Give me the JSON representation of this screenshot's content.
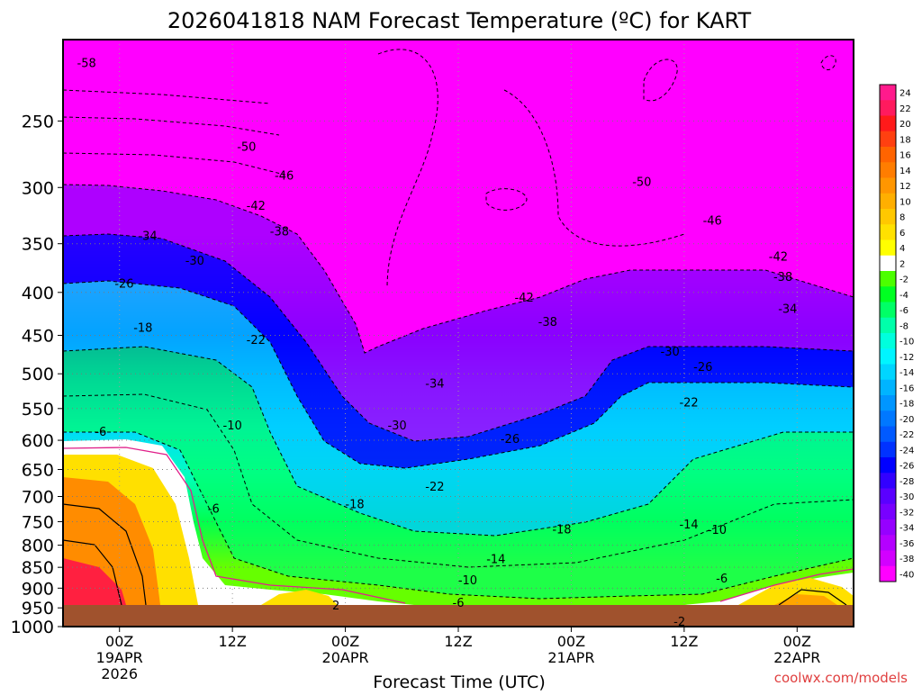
{
  "chart_data": {
    "type": "heatmap",
    "title": "2026041818 NAM Forecast Temperature (ºC) for KART",
    "xlabel": "Forecast Time (UTC)",
    "ylabel": "",
    "credit": "coolwx.com/models",
    "y_axis": {
      "scale": "log",
      "range": [
        200,
        1000
      ],
      "inverted": true,
      "ticks": [
        250,
        300,
        350,
        400,
        450,
        500,
        550,
        600,
        650,
        700,
        750,
        800,
        850,
        900,
        950,
        1000
      ]
    },
    "x_axis": {
      "range_hours": [
        -6,
        78
      ],
      "ticks": [
        {
          "hour": 0,
          "line1": "00Z",
          "line2": "19APR",
          "line3": "2026"
        },
        {
          "hour": 12,
          "line1": "12Z",
          "line2": "",
          "line3": ""
        },
        {
          "hour": 24,
          "line1": "00Z",
          "line2": "20APR",
          "line3": ""
        },
        {
          "hour": 36,
          "line1": "12Z",
          "line2": "",
          "line3": ""
        },
        {
          "hour": 48,
          "line1": "00Z",
          "line2": "21APR",
          "line3": ""
        },
        {
          "hour": 60,
          "line1": "12Z",
          "line2": "",
          "line3": ""
        },
        {
          "hour": 72,
          "line1": "00Z",
          "line2": "22APR",
          "line3": ""
        }
      ]
    },
    "grid": true,
    "colorbar": {
      "placement": "right",
      "labels": [
        "24",
        "22",
        "20",
        "18",
        "16",
        "14",
        "12",
        "10",
        "8",
        "6",
        "4",
        "2",
        "-2",
        "-4",
        "-6",
        "-8",
        "-10",
        "-12",
        "-14",
        "-16",
        "-18",
        "-20",
        "-22",
        "-24",
        "-26",
        "-28",
        "-30",
        "-32",
        "-34",
        "-36",
        "-38",
        "-40"
      ],
      "colors": [
        "#ff1a8c",
        "#ff1a5e",
        "#ff1a1a",
        "#ff4010",
        "#ff6400",
        "#ff7d00",
        "#ff9600",
        "#ffaf00",
        "#ffc800",
        "#ffe100",
        "#ffff00",
        "#ffffff",
        "#4cff00",
        "#00ff22",
        "#00ff66",
        "#00ffaa",
        "#00ffdd",
        "#00f5ff",
        "#00d5ff",
        "#00b4ff",
        "#0096ff",
        "#0078ff",
        "#005aff",
        "#0032ff",
        "#0000ff",
        "#3200ff",
        "#5a00ff",
        "#7800ff",
        "#9600ff",
        "#b400ff",
        "#d200ff",
        "#ff00ff"
      ]
    },
    "contour_labels": [
      {
        "text": "-58",
        "hour": -3.5,
        "p": 213
      },
      {
        "text": "-50",
        "hour": 13.5,
        "p": 268
      },
      {
        "text": "-46",
        "hour": 17.5,
        "p": 290
      },
      {
        "text": "-42",
        "hour": 14.5,
        "p": 315
      },
      {
        "text": "-38",
        "hour": 17,
        "p": 338
      },
      {
        "text": "-34",
        "hour": 3,
        "p": 342
      },
      {
        "text": "-30",
        "hour": 8,
        "p": 366
      },
      {
        "text": "-26",
        "hour": 0.5,
        "p": 390
      },
      {
        "text": "-18",
        "hour": 2.5,
        "p": 440
      },
      {
        "text": "-22",
        "hour": 14.5,
        "p": 455
      },
      {
        "text": "-6",
        "hour": -2,
        "p": 585
      },
      {
        "text": "-10",
        "hour": 12,
        "p": 575
      },
      {
        "text": "-6",
        "hour": 10,
        "p": 723
      },
      {
        "text": "-18",
        "hour": 25,
        "p": 714
      },
      {
        "text": "-34",
        "hour": 33.5,
        "p": 513
      },
      {
        "text": "-30",
        "hour": 29.5,
        "p": 575
      },
      {
        "text": "-22",
        "hour": 33.5,
        "p": 680
      },
      {
        "text": "-26",
        "hour": 41.5,
        "p": 597
      },
      {
        "text": "-42",
        "hour": 43,
        "p": 405
      },
      {
        "text": "-38",
        "hour": 45.5,
        "p": 433
      },
      {
        "text": "-50",
        "hour": 55.5,
        "p": 295
      },
      {
        "text": "-46",
        "hour": 63,
        "p": 328
      },
      {
        "text": "-42",
        "hour": 70,
        "p": 362
      },
      {
        "text": "-38",
        "hour": 70.5,
        "p": 383
      },
      {
        "text": "-34",
        "hour": 71,
        "p": 418
      },
      {
        "text": "-30",
        "hour": 58.5,
        "p": 470
      },
      {
        "text": "-26",
        "hour": 62,
        "p": 490
      },
      {
        "text": "-22",
        "hour": 60.5,
        "p": 540
      },
      {
        "text": "-18",
        "hour": 47,
        "p": 765
      },
      {
        "text": "-14",
        "hour": 40,
        "p": 830
      },
      {
        "text": "-14",
        "hour": 60.5,
        "p": 755
      },
      {
        "text": "-10",
        "hour": 63.5,
        "p": 766
      },
      {
        "text": "-10",
        "hour": 37,
        "p": 880
      },
      {
        "text": "-6",
        "hour": 36,
        "p": 935
      },
      {
        "text": "-6",
        "hour": 64,
        "p": 875
      },
      {
        "text": "-2",
        "hour": 59.5,
        "p": 985
      },
      {
        "text": "2",
        "hour": 23,
        "p": 942
      }
    ]
  }
}
